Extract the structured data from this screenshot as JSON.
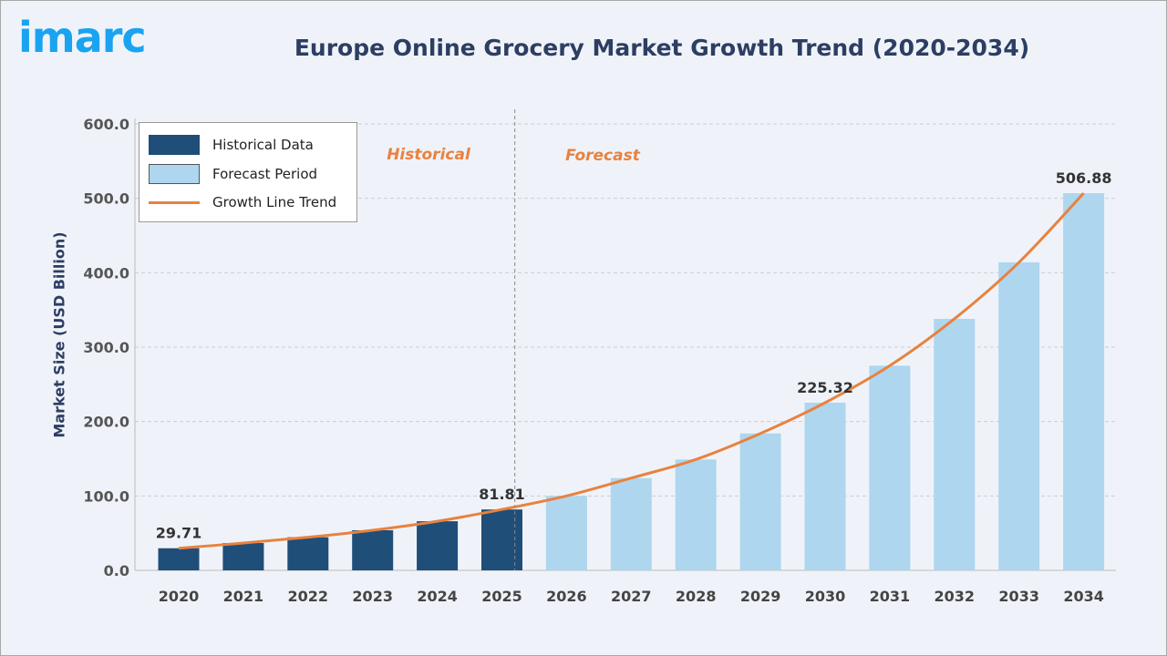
{
  "logo_text": "imarc",
  "colors": {
    "historical": "#1f4e79",
    "forecast": "#aed6ef",
    "trend": "#e8823f",
    "brand": "#1aa3f0"
  },
  "chart_data": {
    "type": "bar",
    "title": "Europe Online Grocery Market Growth Trend (2020-2034)",
    "ylabel": "Market Size (USD Billion)",
    "xlabel": "",
    "ylim": [
      0,
      600
    ],
    "yticks": [
      "0.0",
      "100.0",
      "200.0",
      "300.0",
      "400.0",
      "500.0",
      "600.0"
    ],
    "grid": true,
    "legend_position": "top-left",
    "categories": [
      "2020",
      "2021",
      "2022",
      "2023",
      "2024",
      "2025",
      "2026",
      "2027",
      "2028",
      "2029",
      "2030",
      "2031",
      "2032",
      "2033",
      "2034"
    ],
    "series": [
      {
        "name": "Historical Data",
        "values": [
          29.71,
          36.7,
          44.5,
          53.9,
          66.0,
          81.81,
          null,
          null,
          null,
          null,
          null,
          null,
          null,
          null,
          null
        ]
      },
      {
        "name": "Forecast Period",
        "values": [
          null,
          null,
          null,
          null,
          null,
          null,
          100.0,
          124.0,
          149.0,
          184.0,
          225.32,
          275.0,
          338.0,
          414.0,
          506.88
        ]
      },
      {
        "name": "Growth Line Trend",
        "type": "line",
        "values": [
          29.71,
          36.7,
          44.5,
          53.9,
          66.0,
          81.81,
          100.0,
          124.0,
          149.0,
          184.0,
          225.32,
          275.0,
          338.0,
          414.0,
          506.88
        ]
      }
    ],
    "data_labels": {
      "2020": "29.71",
      "2025": "81.81",
      "2030": "225.32",
      "2034": "506.88"
    },
    "annotations": {
      "historical": "Historical",
      "forecast": "Forecast"
    }
  }
}
